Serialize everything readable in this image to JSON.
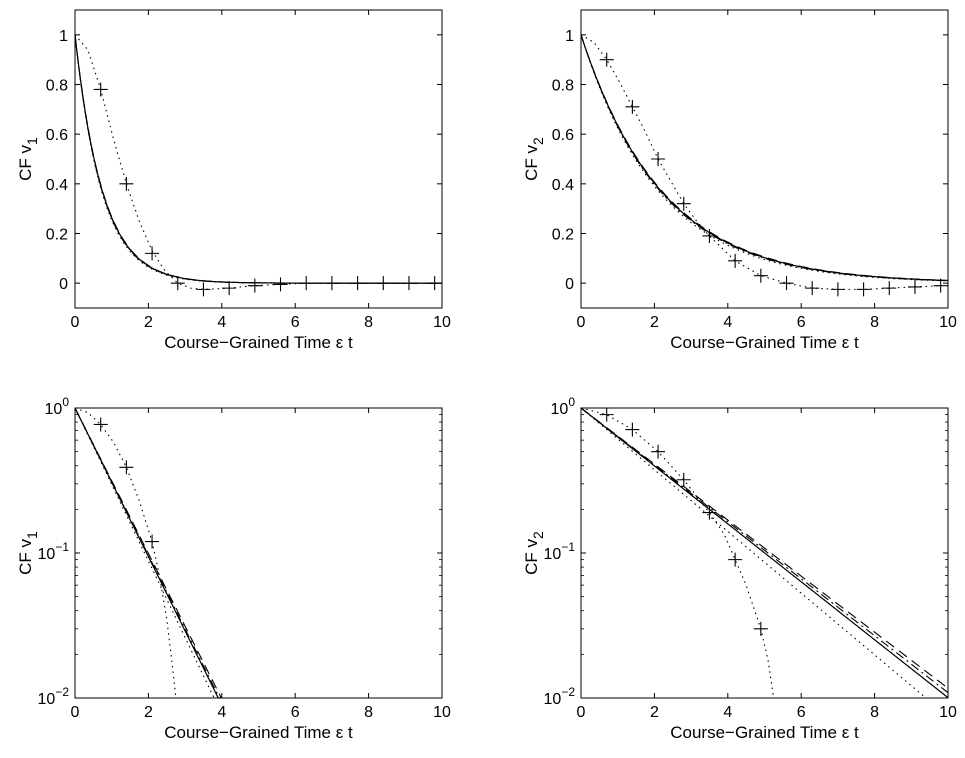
{
  "chart_data": [
    {
      "type": "line",
      "panel": "top-left",
      "xlabel": "Course−Grained Time ε t",
      "ylabel_main": "CF v",
      "ylabel_sub": "1",
      "xlim": [
        0,
        10
      ],
      "ylim": [
        -0.1,
        1.1
      ],
      "yscale": "linear",
      "xticks": [
        0,
        2,
        4,
        6,
        8,
        10
      ],
      "yticks": [
        0,
        0.2,
        0.4,
        0.6,
        0.8,
        1
      ],
      "grid": false,
      "series": [
        {
          "style": "solid",
          "kind": "exp",
          "a": 1.333
        },
        {
          "style": "dashed",
          "kind": "exp",
          "a": 1.32
        },
        {
          "style": "dashdot",
          "kind": "exp",
          "a": 1.345
        },
        {
          "style": "dotted",
          "kind": "exp",
          "a": 1.37
        },
        {
          "style": "dotted",
          "kind": "points",
          "x": [
            0,
            0.35,
            0.7,
            1.05,
            1.4,
            1.75,
            2.1,
            2.45,
            2.8,
            3.15,
            3.5,
            3.85,
            4.2,
            4.9,
            5.6,
            6.3,
            7.0,
            7.7,
            8.4,
            9.1,
            9.8
          ],
          "y": [
            1,
            0.94,
            0.78,
            0.58,
            0.4,
            0.25,
            0.13,
            0.05,
            0.0,
            -0.02,
            -0.025,
            -0.023,
            -0.02,
            -0.01,
            -0.005,
            0,
            0,
            0,
            0,
            0,
            0
          ]
        },
        {
          "style": "markers",
          "marker": "+",
          "x": [
            0.7,
            1.4,
            2.1,
            2.8,
            3.5,
            4.2,
            4.9,
            5.6,
            6.3,
            7.0,
            7.7,
            8.4,
            9.1,
            9.8
          ],
          "y": [
            0.78,
            0.4,
            0.12,
            0.0,
            -0.025,
            -0.02,
            -0.01,
            -0.005,
            0,
            0,
            0,
            0,
            0,
            0
          ]
        }
      ]
    },
    {
      "type": "line",
      "panel": "top-right",
      "xlabel": "Course−Grained Time ε t",
      "ylabel_main": "CF v",
      "ylabel_sub": "2",
      "xlim": [
        0,
        10
      ],
      "ylim": [
        -0.1,
        1.1
      ],
      "yscale": "linear",
      "xticks": [
        0,
        2,
        4,
        6,
        8,
        10
      ],
      "yticks": [
        0,
        0.2,
        0.4,
        0.6,
        0.8,
        1
      ],
      "grid": false,
      "series": [
        {
          "style": "solid",
          "kind": "exp",
          "a": 0.455
        },
        {
          "style": "dashed",
          "kind": "exp",
          "a": 0.45
        },
        {
          "style": "dashdot",
          "kind": "exp",
          "a": 0.46
        },
        {
          "style": "dotted",
          "kind": "exp",
          "a": 0.47
        },
        {
          "style": "dotted",
          "kind": "points",
          "x": [
            0,
            0.35,
            0.7,
            1.05,
            1.4,
            1.75,
            2.1,
            2.45,
            2.8,
            3.15,
            3.5,
            3.85,
            4.2,
            4.55,
            4.9,
            5.6,
            6.3,
            7.0,
            7.7,
            8.4,
            9.1,
            9.8
          ],
          "y": [
            1,
            0.97,
            0.9,
            0.81,
            0.71,
            0.61,
            0.5,
            0.41,
            0.32,
            0.25,
            0.19,
            0.14,
            0.09,
            0.06,
            0.03,
            0.0,
            -0.02,
            -0.025,
            -0.025,
            -0.02,
            -0.015,
            -0.01
          ]
        },
        {
          "style": "markers",
          "marker": "+",
          "x": [
            0.7,
            1.4,
            2.1,
            2.8,
            3.5,
            4.2,
            4.9,
            5.6,
            6.3,
            7.0,
            7.7,
            8.4,
            9.1,
            9.8
          ],
          "y": [
            0.9,
            0.71,
            0.5,
            0.32,
            0.19,
            0.09,
            0.03,
            0.0,
            -0.02,
            -0.025,
            -0.025,
            -0.02,
            -0.015,
            -0.01
          ]
        }
      ]
    },
    {
      "type": "line",
      "panel": "bottom-left",
      "xlabel": "Course−Grained Time ε t",
      "ylabel_main": "CF v",
      "ylabel_sub": "1",
      "xlim": [
        0,
        10
      ],
      "ylim": [
        0.01,
        1
      ],
      "yscale": "log",
      "xticks": [
        0,
        2,
        4,
        6,
        8,
        10
      ],
      "yticks": [
        1,
        0.1,
        0.01
      ],
      "ytick_labels": [
        {
          "base": "10",
          "exp": "0"
        },
        {
          "base": "10",
          "exp": "−1"
        },
        {
          "base": "10",
          "exp": "−2"
        }
      ],
      "grid": false,
      "series": [
        {
          "style": "solid",
          "kind": "exp",
          "a": 1.18
        },
        {
          "style": "dashed",
          "kind": "exp",
          "a": 1.155
        },
        {
          "style": "dashdot",
          "kind": "exp",
          "a": 1.17
        },
        {
          "style": "dotted",
          "kind": "exp",
          "a": 1.215
        },
        {
          "style": "dotted",
          "kind": "points",
          "x": [
            0,
            0.35,
            0.7,
            1.05,
            1.4,
            1.75,
            2.1,
            2.3,
            2.5,
            2.65,
            2.75
          ],
          "y": [
            1,
            0.93,
            0.77,
            0.58,
            0.39,
            0.23,
            0.12,
            0.07,
            0.035,
            0.017,
            0.01
          ]
        },
        {
          "style": "markers",
          "marker": "+",
          "x": [
            0.7,
            1.4,
            2.1
          ],
          "y": [
            0.77,
            0.39,
            0.12
          ]
        }
      ]
    },
    {
      "type": "line",
      "panel": "bottom-right",
      "xlabel": "Course−Grained Time ε t",
      "ylabel_main": "CF v",
      "ylabel_sub": "2",
      "xlim": [
        0,
        10
      ],
      "ylim": [
        0.01,
        1
      ],
      "yscale": "log",
      "xticks": [
        0,
        2,
        4,
        6,
        8,
        10
      ],
      "yticks": [
        1,
        0.1,
        0.01
      ],
      "ytick_labels": [
        {
          "base": "10",
          "exp": "0"
        },
        {
          "base": "10",
          "exp": "−1"
        },
        {
          "base": "10",
          "exp": "−2"
        }
      ],
      "grid": false,
      "series": [
        {
          "style": "solid",
          "kind": "exp",
          "a": 0.46
        },
        {
          "style": "dashed",
          "kind": "exp",
          "a": 0.445
        },
        {
          "style": "dashdot",
          "kind": "exp",
          "a": 0.452
        },
        {
          "style": "dotted",
          "kind": "exp",
          "a": 0.49
        },
        {
          "style": "dotted",
          "kind": "points",
          "x": [
            0,
            0.7,
            1.4,
            2.1,
            2.8,
            3.5,
            3.9,
            4.2,
            4.5,
            4.9,
            5.1,
            5.25
          ],
          "y": [
            1,
            0.9,
            0.71,
            0.5,
            0.32,
            0.19,
            0.135,
            0.09,
            0.06,
            0.03,
            0.018,
            0.01
          ]
        },
        {
          "style": "markers",
          "marker": "+",
          "x": [
            0.7,
            1.4,
            2.1,
            2.8,
            3.5,
            4.2,
            4.9
          ],
          "y": [
            0.9,
            0.71,
            0.5,
            0.32,
            0.19,
            0.09,
            0.03
          ]
        }
      ]
    }
  ]
}
